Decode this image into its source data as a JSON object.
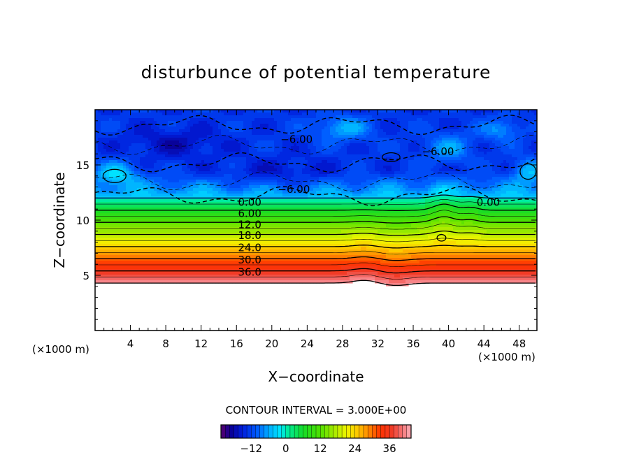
{
  "chart_data": {
    "type": "heatmap",
    "title": "disturbunce of potential temperature",
    "xlabel": "X−coordinate",
    "ylabel": "Z−coordinate",
    "x_units_left": "(×1000 m)",
    "x_units_right": "(×1000 m)",
    "x_ticks": [
      "4",
      "8",
      "12",
      "16",
      "20",
      "24",
      "28",
      "32",
      "36",
      "40",
      "44",
      "48"
    ],
    "y_ticks": [
      "5",
      "10",
      "15"
    ],
    "xlim": [
      0,
      50
    ],
    "ylim": [
      0,
      20
    ],
    "contour_interval_text": "CONTOUR INTERVAL = 3.000E+00",
    "contour_labels": [
      {
        "text": "−6.00",
        "x": 22.8,
        "z": 17.3
      },
      {
        "text": "−6.00",
        "x": 38.8,
        "z": 16.2
      },
      {
        "text": "−6.00",
        "x": 22.5,
        "z": 12.8
      },
      {
        "text": "0.00",
        "x": 17.5,
        "z": 11.6
      },
      {
        "text": "0.00",
        "x": 44.5,
        "z": 11.6
      },
      {
        "text": "6.00",
        "x": 17.5,
        "z": 10.6
      },
      {
        "text": "12.0",
        "x": 17.5,
        "z": 9.6
      },
      {
        "text": "18.0",
        "x": 17.5,
        "z": 8.6
      },
      {
        "text": "24.0",
        "x": 17.5,
        "z": 7.5
      },
      {
        "text": "30.0",
        "x": 17.5,
        "z": 6.4
      },
      {
        "text": "36.0",
        "x": 17.5,
        "z": 5.3
      }
    ],
    "colorbar": {
      "min": -22.5,
      "max": 43.5,
      "ticks": [
        "−12",
        "0",
        "12",
        "24",
        "36"
      ],
      "tick_values": [
        -12,
        0,
        12,
        24,
        36
      ]
    },
    "field_description_levels": {
      "ground_top_z": 4.3,
      "cold_layer": {
        "z_min": 12,
        "z_max": 20,
        "values_range": [
          -21,
          -3
        ]
      },
      "stable_layer": {
        "z_min": 4.3,
        "z_max": 12,
        "values_range": [
          0,
          42
        ]
      }
    }
  }
}
